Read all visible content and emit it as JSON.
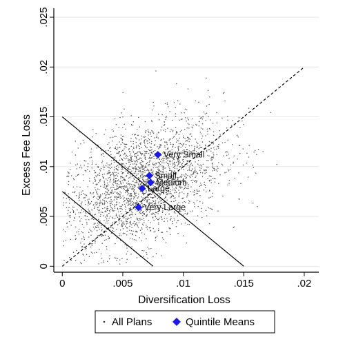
{
  "chart_data": {
    "type": "scatter",
    "xlabel": "Diversification Loss",
    "ylabel": "Excess Fee Loss",
    "xlim": [
      -0.0007,
      0.0212
    ],
    "ylim": [
      -0.0006,
      0.0259
    ],
    "x_ticks": [
      0,
      0.005,
      0.01,
      0.015,
      0.02
    ],
    "x_tick_labels": [
      "0",
      ".005",
      ".01",
      ".015",
      ".02"
    ],
    "y_ticks": [
      0,
      0.005,
      0.01,
      0.015,
      0.02,
      0.025
    ],
    "y_tick_labels": [
      "0",
      ".005",
      ".01",
      ".015",
      ".02",
      ".025"
    ],
    "grid": "horizontal",
    "legend_position": "bottom",
    "legend": [
      {
        "label": "All Plans",
        "symbol": "dot",
        "color": "#555555"
      },
      {
        "label": "Quintile Means",
        "symbol": "diamond",
        "color": "#1a1ae6"
      }
    ],
    "reference_lines": [
      {
        "style": "dashed",
        "points": [
          [
            0,
            0
          ],
          [
            0.02,
            0.02
          ]
        ]
      },
      {
        "style": "solid",
        "points": [
          [
            0,
            0.015
          ],
          [
            0.015,
            0
          ]
        ]
      },
      {
        "style": "solid",
        "points": [
          [
            0,
            0.0075
          ],
          [
            0.0075,
            0
          ]
        ]
      }
    ],
    "series": [
      {
        "name": "Quintile Means",
        "points": [
          {
            "label": "Very Small",
            "x": 0.0079,
            "y": 0.0112
          },
          {
            "label": "Small",
            "x": 0.0072,
            "y": 0.0091
          },
          {
            "label": "Medium",
            "x": 0.0073,
            "y": 0.0084
          },
          {
            "label": "Large",
            "x": 0.0066,
            "y": 0.0078
          },
          {
            "label": "Very Large",
            "x": 0.0063,
            "y": 0.0059
          }
        ]
      }
    ],
    "scatter_cloud": {
      "name": "All Plans",
      "approx_count": 2600,
      "x_center": 0.0065,
      "y_center": 0.0082,
      "x_spread": 0.0034,
      "y_spread": 0.0034
    }
  },
  "colors": {
    "means_marker": "#1a1ae6",
    "plan_dot": "#555555",
    "grid": "#e6e6e6"
  }
}
